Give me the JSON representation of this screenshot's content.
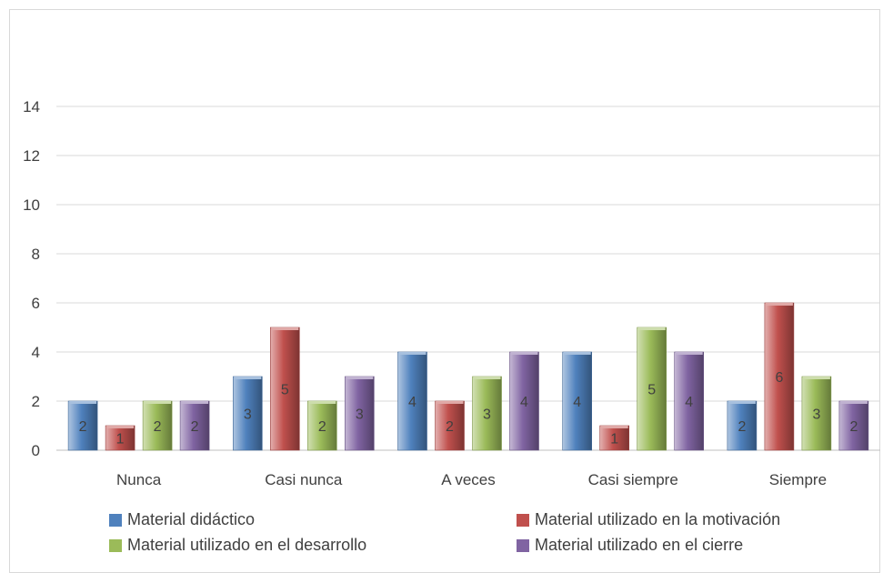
{
  "chart_data": {
    "type": "bar",
    "title": "",
    "xlabel": "",
    "ylabel": "",
    "ylim": [
      0,
      14
    ],
    "yticks": [
      0,
      2,
      4,
      6,
      8,
      10,
      12,
      14
    ],
    "categories": [
      "Nunca",
      "Casi nunca",
      "A veces",
      "Casi siempre",
      "Siempre"
    ],
    "series": [
      {
        "name": "Material didáctico",
        "color": "#4f81bd",
        "values": [
          2,
          3,
          4,
          4,
          2
        ]
      },
      {
        "name": "Material utilizado en la motivación",
        "color": "#c0504d",
        "values": [
          1,
          5,
          2,
          1,
          6
        ]
      },
      {
        "name": "Material utilizado en el desarrollo",
        "color": "#9bbb59",
        "values": [
          2,
          2,
          3,
          5,
          3
        ]
      },
      {
        "name": "Material utilizado en el cierre",
        "color": "#8064a2",
        "values": [
          2,
          3,
          4,
          4,
          2
        ]
      }
    ],
    "grid": true,
    "legend": "bottom"
  }
}
